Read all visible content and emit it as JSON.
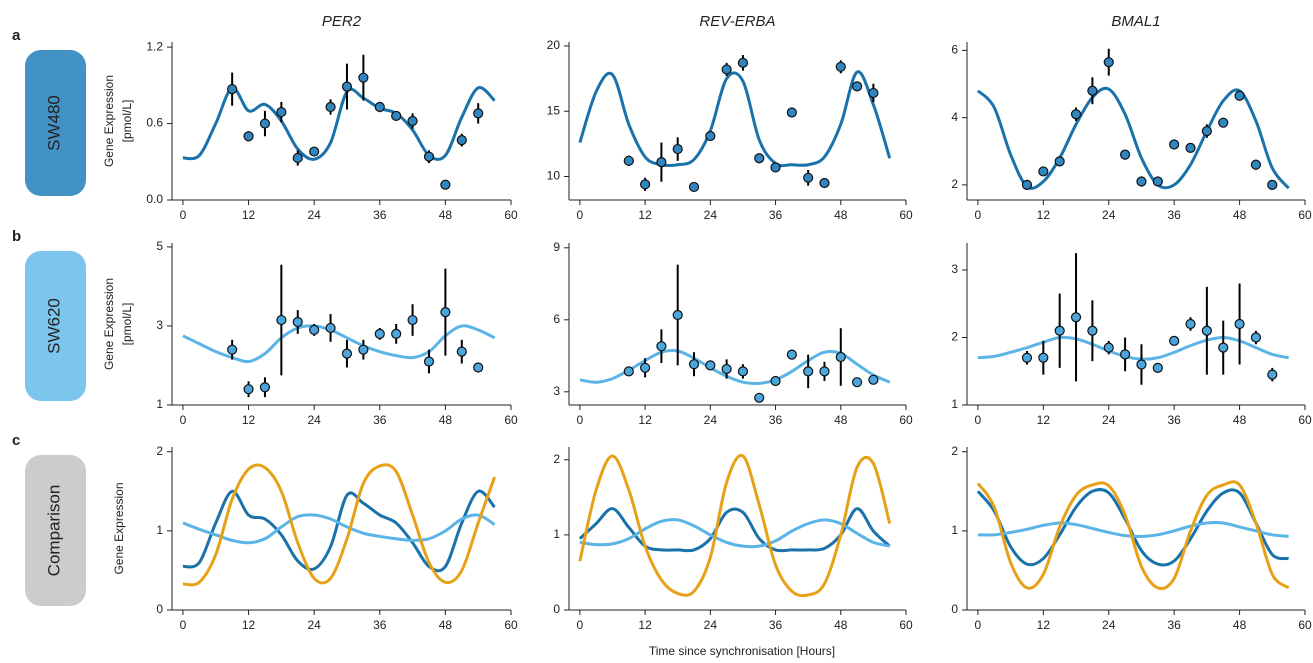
{
  "rows": [
    {
      "letter": "a",
      "label": "SW480",
      "color": "#4292c6"
    },
    {
      "letter": "b",
      "label": "SW620",
      "color": "#7cc6ee"
    },
    {
      "letter": "c",
      "label": "Comparison",
      "color": "#cccccc"
    }
  ],
  "xlabel": "Time since synchronisation [Hours]",
  "chart_data": [
    {
      "type": "line",
      "title": "PER2",
      "ylabel": [
        "Gene Expression",
        "[pmol/L]"
      ],
      "xlim": [
        -2,
        60
      ],
      "xticks": [
        0,
        12,
        24,
        36,
        48,
        60
      ],
      "ylim": [
        0,
        1.24
      ],
      "yticks": [
        {
          "value": 0,
          "label": "0.0"
        },
        0.6,
        1.2
      ],
      "x": [
        0,
        3,
        6,
        9,
        12,
        15,
        18,
        21,
        24,
        27,
        30,
        33,
        36,
        39,
        42,
        45,
        48,
        51,
        54,
        57
      ],
      "series": [
        {
          "color": "#1a72aa",
          "values": [
            0.33,
            0.35,
            0.6,
            0.88,
            0.7,
            0.75,
            0.62,
            0.4,
            0.32,
            0.45,
            0.85,
            0.8,
            0.72,
            0.68,
            0.55,
            0.35,
            0.35,
            0.65,
            0.88,
            0.78
          ]
        }
      ],
      "points": {
        "color": "#2f86c0",
        "x": [
          9,
          12,
          15,
          18,
          21,
          24,
          27,
          30,
          33,
          36,
          39,
          42,
          45,
          48,
          51,
          54
        ],
        "values": [
          0.87,
          0.5,
          0.6,
          0.69,
          0.33,
          0.38,
          0.73,
          0.89,
          0.96,
          0.73,
          0.66,
          0.62,
          0.34,
          0.12,
          0.47,
          0.68
        ],
        "errors": [
          0.13,
          0.04,
          0.1,
          0.08,
          0.06,
          0.03,
          0.06,
          0.18,
          0.18,
          0.04,
          0.03,
          0.06,
          0.05,
          0.02,
          0.05,
          0.08
        ]
      }
    },
    {
      "type": "line",
      "title": "REV-ERBA",
      "xlim": [
        -2,
        60
      ],
      "xticks": [
        0,
        12,
        24,
        36,
        48,
        60
      ],
      "ylim": [
        8.2,
        20.3
      ],
      "yticks": [
        10,
        15,
        20
      ],
      "x": [
        0,
        3,
        6,
        9,
        12,
        15,
        18,
        21,
        24,
        27,
        30,
        33,
        36,
        39,
        42,
        45,
        48,
        51,
        54,
        57
      ],
      "series": [
        {
          "color": "#1a72aa",
          "values": [
            12.6,
            16.5,
            17.8,
            14,
            11.5,
            10.9,
            10.9,
            11.3,
            13.5,
            17.5,
            17.3,
            12.8,
            11,
            10.9,
            10.9,
            11.5,
            14,
            18,
            15.5,
            11.4
          ]
        }
      ],
      "points": {
        "color": "#2f86c0",
        "x": [
          9,
          12,
          15,
          18,
          21,
          24,
          27,
          30,
          33,
          36,
          39,
          42,
          45,
          48,
          51,
          54
        ],
        "values": [
          11.2,
          9.4,
          11.1,
          12.1,
          9.2,
          13.1,
          18.2,
          18.7,
          11.4,
          10.7,
          14.9,
          9.9,
          9.5,
          18.4,
          16.9,
          16.4
        ],
        "errors": [
          0.4,
          0.5,
          1.5,
          0.9,
          0.1,
          0.2,
          0.5,
          0.6,
          0.2,
          0.2,
          0.3,
          0.6,
          0.3,
          0.5,
          0.3,
          0.7
        ]
      }
    },
    {
      "type": "line",
      "title": "BMAL1",
      "xlim": [
        -2,
        60
      ],
      "xticks": [
        0,
        12,
        24,
        36,
        48,
        60
      ],
      "ylim": [
        1.55,
        6.25
      ],
      "yticks": [
        2,
        4,
        6
      ],
      "x": [
        0,
        3,
        6,
        9,
        12,
        15,
        18,
        21,
        24,
        27,
        30,
        33,
        36,
        39,
        42,
        45,
        48,
        51,
        54,
        57
      ],
      "series": [
        {
          "color": "#1a72aa",
          "values": [
            4.8,
            4.3,
            2.9,
            1.95,
            2.1,
            2.8,
            3.8,
            4.6,
            4.85,
            4.1,
            2.8,
            2.0,
            2.0,
            2.6,
            3.6,
            4.5,
            4.8,
            3.9,
            2.5,
            1.9
          ]
        }
      ],
      "points": {
        "color": "#2f86c0",
        "x": [
          9,
          12,
          15,
          18,
          21,
          24,
          27,
          30,
          33,
          36,
          39,
          42,
          45,
          48,
          51,
          54
        ],
        "values": [
          2.0,
          2.4,
          2.7,
          4.1,
          4.8,
          5.65,
          2.9,
          2.1,
          2.1,
          3.2,
          3.1,
          3.6,
          3.85,
          4.65,
          2.6,
          2.0
        ],
        "errors": [
          0.15,
          0.1,
          0.15,
          0.2,
          0.4,
          0.4,
          0.1,
          0.15,
          0.1,
          0.1,
          0.1,
          0.2,
          0.1,
          0.1,
          0.15,
          0.1
        ]
      }
    },
    {
      "type": "line",
      "ylabel": [
        "Gene Expression",
        "[pmol/L]"
      ],
      "xlim": [
        -2,
        60
      ],
      "xticks": [
        0,
        12,
        24,
        36,
        48,
        60
      ],
      "ylim": [
        1,
        5.1
      ],
      "yticks": [
        1,
        3,
        5
      ],
      "x": [
        0,
        3,
        6,
        9,
        12,
        15,
        18,
        21,
        24,
        27,
        30,
        33,
        36,
        39,
        42,
        45,
        48,
        51,
        54,
        57
      ],
      "series": [
        {
          "color": "#5ab4e6",
          "values": [
            2.75,
            2.55,
            2.35,
            2.2,
            2.1,
            2.3,
            2.7,
            2.95,
            3.0,
            2.9,
            2.7,
            2.5,
            2.35,
            2.25,
            2.2,
            2.35,
            2.75,
            3.0,
            2.9,
            2.7
          ]
        }
      ],
      "points": {
        "color": "#4aa6dc",
        "x": [
          9,
          12,
          15,
          18,
          21,
          24,
          27,
          30,
          33,
          36,
          39,
          42,
          45,
          48,
          51,
          54
        ],
        "values": [
          2.4,
          1.4,
          1.45,
          3.15,
          3.1,
          2.9,
          2.95,
          2.3,
          2.4,
          2.8,
          2.8,
          3.15,
          2.1,
          3.35,
          2.35,
          1.95
        ],
        "errors": [
          0.25,
          0.2,
          0.25,
          1.4,
          0.3,
          0.15,
          0.35,
          0.35,
          0.25,
          0.15,
          0.25,
          0.4,
          0.3,
          1.1,
          0.3,
          0.05
        ]
      }
    },
    {
      "type": "line",
      "xlim": [
        -2,
        60
      ],
      "xticks": [
        0,
        12,
        24,
        36,
        48,
        60
      ],
      "ylim": [
        2.45,
        9.2
      ],
      "yticks": [
        3,
        6,
        9
      ],
      "x": [
        0,
        3,
        6,
        9,
        12,
        15,
        18,
        21,
        24,
        27,
        30,
        33,
        36,
        39,
        42,
        45,
        48,
        51,
        54,
        57
      ],
      "series": [
        {
          "color": "#5ab4e6",
          "values": [
            3.5,
            3.4,
            3.55,
            3.9,
            4.3,
            4.65,
            4.7,
            4.4,
            4.0,
            3.65,
            3.4,
            3.35,
            3.5,
            3.85,
            4.3,
            4.65,
            4.6,
            4.15,
            3.7,
            3.4
          ]
        }
      ],
      "points": {
        "color": "#4aa6dc",
        "x": [
          9,
          12,
          15,
          18,
          21,
          24,
          27,
          30,
          33,
          36,
          39,
          42,
          45,
          48,
          51,
          54
        ],
        "values": [
          3.85,
          4.0,
          4.9,
          6.2,
          4.15,
          4.1,
          3.95,
          3.85,
          2.75,
          3.45,
          4.55,
          3.85,
          3.85,
          4.45,
          3.4,
          3.5
        ],
        "errors": [
          0.1,
          0.4,
          0.7,
          2.1,
          0.5,
          0.1,
          0.4,
          0.3,
          0.1,
          0.2,
          0.2,
          0.7,
          0.4,
          1.2,
          0.1,
          0.1
        ]
      }
    },
    {
      "type": "line",
      "xlim": [
        -2,
        60
      ],
      "xticks": [
        0,
        12,
        24,
        36,
        48,
        60
      ],
      "ylim": [
        1,
        3.4
      ],
      "yticks": [
        1,
        2,
        3
      ],
      "x": [
        0,
        3,
        6,
        9,
        12,
        15,
        18,
        21,
        24,
        27,
        30,
        33,
        36,
        39,
        42,
        45,
        48,
        51,
        54,
        57
      ],
      "series": [
        {
          "color": "#5ab4e6",
          "values": [
            1.7,
            1.72,
            1.78,
            1.85,
            1.93,
            2.0,
            1.98,
            1.9,
            1.8,
            1.72,
            1.68,
            1.7,
            1.78,
            1.88,
            1.96,
            2.0,
            1.95,
            1.85,
            1.75,
            1.7
          ]
        }
      ],
      "points": {
        "color": "#4aa6dc",
        "x": [
          9,
          12,
          15,
          18,
          21,
          24,
          27,
          30,
          33,
          36,
          39,
          42,
          45,
          48,
          51,
          54
        ],
        "values": [
          1.7,
          1.7,
          2.1,
          2.3,
          2.1,
          1.85,
          1.75,
          1.6,
          1.55,
          1.95,
          2.2,
          2.1,
          1.85,
          2.2,
          2.0,
          1.45
        ],
        "errors": [
          0.1,
          0.25,
          0.55,
          0.95,
          0.45,
          0.1,
          0.25,
          0.3,
          0.05,
          0.05,
          0.1,
          0.65,
          0.4,
          0.6,
          0.1,
          0.1
        ]
      }
    },
    {
      "type": "line",
      "ylabel": [
        "Gene Expression"
      ],
      "xlim": [
        -2,
        60
      ],
      "xticks": [
        0,
        12,
        24,
        36,
        48,
        60
      ],
      "ylim": [
        0,
        2.06
      ],
      "yticks": [
        0,
        1,
        2
      ],
      "x": [
        0,
        3,
        6,
        9,
        12,
        15,
        18,
        21,
        24,
        27,
        30,
        33,
        36,
        39,
        42,
        45,
        48,
        51,
        54,
        57
      ],
      "series": [
        {
          "color": "#1a72aa",
          "values": [
            0.55,
            0.6,
            1.1,
            1.5,
            1.2,
            1.15,
            0.95,
            0.62,
            0.52,
            0.8,
            1.45,
            1.35,
            1.2,
            1.1,
            0.85,
            0.55,
            0.55,
            1.1,
            1.5,
            1.3
          ]
        },
        {
          "color": "#5ab4e6",
          "values": [
            1.1,
            1.02,
            0.95,
            0.88,
            0.85,
            0.9,
            1.05,
            1.18,
            1.2,
            1.15,
            1.05,
            0.97,
            0.93,
            0.9,
            0.88,
            0.9,
            1.0,
            1.15,
            1.2,
            1.08
          ]
        },
        {
          "color": "#e6a117",
          "values": [
            0.33,
            0.35,
            0.7,
            1.4,
            1.78,
            1.8,
            1.5,
            0.85,
            0.4,
            0.4,
            0.9,
            1.6,
            1.82,
            1.75,
            1.2,
            0.6,
            0.35,
            0.5,
            1.1,
            1.68
          ]
        }
      ]
    },
    {
      "type": "line",
      "xlim": [
        -2,
        60
      ],
      "xticks": [
        0,
        12,
        24,
        36,
        48,
        60
      ],
      "ylim": [
        0,
        2.17
      ],
      "yticks": [
        0,
        1,
        2
      ],
      "x": [
        0,
        3,
        6,
        9,
        12,
        15,
        18,
        21,
        24,
        27,
        30,
        33,
        36,
        39,
        42,
        45,
        48,
        51,
        54,
        57
      ],
      "series": [
        {
          "color": "#1a72aa",
          "values": [
            0.95,
            1.15,
            1.35,
            1.1,
            0.85,
            0.8,
            0.8,
            0.8,
            0.95,
            1.3,
            1.3,
            0.95,
            0.8,
            0.8,
            0.8,
            0.82,
            1.0,
            1.35,
            1.05,
            0.85
          ]
        },
        {
          "color": "#5ab4e6",
          "values": [
            0.9,
            0.87,
            0.88,
            0.95,
            1.08,
            1.18,
            1.2,
            1.12,
            1.0,
            0.9,
            0.85,
            0.85,
            0.92,
            1.05,
            1.15,
            1.2,
            1.15,
            1.02,
            0.9,
            0.85
          ]
        },
        {
          "color": "#e6a117",
          "values": [
            0.65,
            1.6,
            2.05,
            1.6,
            0.85,
            0.4,
            0.22,
            0.25,
            0.7,
            1.7,
            2.05,
            1.4,
            0.6,
            0.25,
            0.2,
            0.35,
            1.0,
            1.9,
            1.95,
            1.15
          ]
        }
      ]
    },
    {
      "type": "line",
      "xlim": [
        -2,
        60
      ],
      "xticks": [
        0,
        12,
        24,
        36,
        48,
        60
      ],
      "ylim": [
        0,
        2.06
      ],
      "yticks": [
        0,
        1,
        2
      ],
      "x": [
        0,
        3,
        6,
        9,
        12,
        15,
        18,
        21,
        24,
        27,
        30,
        33,
        36,
        39,
        42,
        45,
        48,
        51,
        54,
        57
      ],
      "series": [
        {
          "color": "#1a72aa",
          "values": [
            1.5,
            1.25,
            0.8,
            0.58,
            0.65,
            0.95,
            1.3,
            1.5,
            1.48,
            1.15,
            0.75,
            0.58,
            0.62,
            0.9,
            1.25,
            1.48,
            1.48,
            1.1,
            0.7,
            0.65
          ]
        },
        {
          "color": "#5ab4e6",
          "values": [
            0.95,
            0.95,
            0.98,
            1.02,
            1.07,
            1.1,
            1.08,
            1.03,
            0.98,
            0.94,
            0.93,
            0.95,
            1.0,
            1.06,
            1.1,
            1.1,
            1.05,
            1.0,
            0.95,
            0.93
          ]
        },
        {
          "color": "#e6a117",
          "values": [
            1.6,
            1.3,
            0.6,
            0.28,
            0.45,
            1.05,
            1.45,
            1.58,
            1.57,
            1.2,
            0.55,
            0.28,
            0.4,
            1.0,
            1.45,
            1.58,
            1.58,
            1.1,
            0.45,
            0.28
          ]
        }
      ]
    }
  ]
}
